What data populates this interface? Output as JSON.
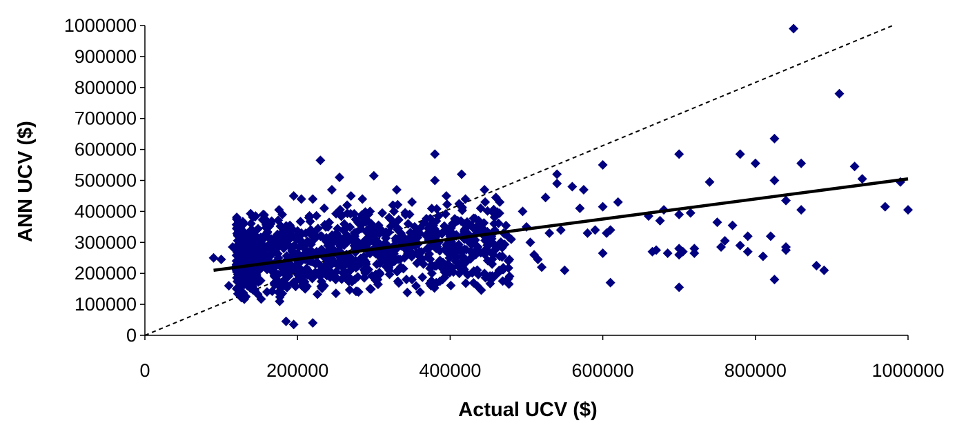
{
  "chart_data": {
    "type": "scatter",
    "title": "",
    "xlabel": "Actual UCV ($)",
    "ylabel": "ANN UCV ($)",
    "xlim": [
      0,
      1000000
    ],
    "ylim": [
      0,
      1000000
    ],
    "x_ticks": [
      "0",
      "200000",
      "400000",
      "600000",
      "800000",
      "1000000"
    ],
    "y_ticks": [
      "0",
      "100000",
      "200000",
      "300000",
      "400000",
      "500000",
      "600000",
      "700000",
      "800000",
      "900000",
      "1000000"
    ],
    "grid": false,
    "legend": "none",
    "colors": {
      "marker": "#000080",
      "trendline": "#000000",
      "reference_line": "#000000"
    },
    "reference_line": {
      "style": "dashed",
      "x": [
        0,
        980000
      ],
      "y": [
        0,
        1000000
      ]
    },
    "trendline": {
      "style": "solid",
      "x": [
        90000,
        1000000
      ],
      "y": [
        210000,
        505000
      ]
    },
    "series": [
      {
        "marker": "diamond",
        "points": [
          [
            90000,
            250000
          ],
          [
            100000,
            245000
          ],
          [
            110000,
            160000
          ],
          [
            115000,
            285000
          ],
          [
            120000,
            240000
          ],
          [
            125000,
            300000
          ],
          [
            130000,
            210000
          ],
          [
            135000,
            320000
          ],
          [
            140000,
            195000
          ],
          [
            140000,
            270000
          ],
          [
            145000,
            385000
          ],
          [
            145000,
            230000
          ],
          [
            150000,
            305000
          ],
          [
            150000,
            175000
          ],
          [
            155000,
            260000
          ],
          [
            155000,
            390000
          ],
          [
            160000,
            140000
          ],
          [
            160000,
            330000
          ],
          [
            165000,
            225000
          ],
          [
            165000,
            360000
          ],
          [
            170000,
            280000
          ],
          [
            170000,
            170000
          ],
          [
            175000,
            310000
          ],
          [
            175000,
            250000
          ],
          [
            180000,
            135000
          ],
          [
            180000,
            390000
          ],
          [
            185000,
            45000
          ],
          [
            185000,
            300000
          ],
          [
            190000,
            220000
          ],
          [
            190000,
            355000
          ],
          [
            195000,
            35000
          ],
          [
            195000,
            450000
          ],
          [
            200000,
            265000
          ],
          [
            200000,
            180000
          ],
          [
            205000,
            330000
          ],
          [
            205000,
            440000
          ],
          [
            210000,
            245000
          ],
          [
            210000,
            150000
          ],
          [
            215000,
            300000
          ],
          [
            215000,
            380000
          ],
          [
            220000,
            40000
          ],
          [
            220000,
            440000
          ],
          [
            225000,
            270000
          ],
          [
            225000,
            200000
          ],
          [
            230000,
            565000
          ],
          [
            230000,
            320000
          ],
          [
            235000,
            410000
          ],
          [
            235000,
            160000
          ],
          [
            240000,
            290000
          ],
          [
            240000,
            350000
          ],
          [
            245000,
            230000
          ],
          [
            245000,
            470000
          ],
          [
            250000,
            310000
          ],
          [
            250000,
            180000
          ],
          [
            255000,
            510000
          ],
          [
            255000,
            270000
          ],
          [
            260000,
            340000
          ],
          [
            260000,
            200000
          ],
          [
            265000,
            300000
          ],
          [
            265000,
            420000
          ],
          [
            270000,
            250000
          ],
          [
            270000,
            450000
          ],
          [
            275000,
            320000
          ],
          [
            275000,
            180000
          ],
          [
            280000,
            280000
          ],
          [
            280000,
            140000
          ],
          [
            285000,
            360000
          ],
          [
            285000,
            440000
          ],
          [
            290000,
            300000
          ],
          [
            290000,
            230000
          ],
          [
            295000,
            150000
          ],
          [
            295000,
            400000
          ],
          [
            300000,
            515000
          ],
          [
            300000,
            320000
          ],
          [
            305000,
            260000
          ],
          [
            305000,
            180000
          ],
          [
            310000,
            340000
          ],
          [
            315000,
            290000
          ],
          [
            320000,
            380000
          ],
          [
            320000,
            210000
          ],
          [
            325000,
            420000
          ],
          [
            330000,
            470000
          ],
          [
            330000,
            280000
          ],
          [
            335000,
            320000
          ],
          [
            340000,
            250000
          ],
          [
            345000,
            360000
          ],
          [
            350000,
            180000
          ],
          [
            350000,
            430000
          ],
          [
            355000,
            300000
          ],
          [
            360000,
            330000
          ],
          [
            365000,
            230000
          ],
          [
            370000,
            280000
          ],
          [
            375000,
            160000
          ],
          [
            380000,
            585000
          ],
          [
            380000,
            500000
          ],
          [
            385000,
            300000
          ],
          [
            390000,
            180000
          ],
          [
            395000,
            450000
          ],
          [
            400000,
            320000
          ],
          [
            405000,
            270000
          ],
          [
            410000,
            370000
          ],
          [
            415000,
            520000
          ],
          [
            420000,
            440000
          ],
          [
            425000,
            300000
          ],
          [
            430000,
            260000
          ],
          [
            435000,
            330000
          ],
          [
            440000,
            410000
          ],
          [
            445000,
            200000
          ],
          [
            445000,
            470000
          ],
          [
            450000,
            300000
          ],
          [
            455000,
            230000
          ],
          [
            460000,
            445000
          ],
          [
            460000,
            195000
          ],
          [
            465000,
            430000
          ],
          [
            470000,
            330000
          ],
          [
            480000,
            310000
          ],
          [
            495000,
            400000
          ],
          [
            500000,
            350000
          ],
          [
            505000,
            300000
          ],
          [
            510000,
            260000
          ],
          [
            515000,
            245000
          ],
          [
            520000,
            220000
          ],
          [
            525000,
            445000
          ],
          [
            530000,
            330000
          ],
          [
            540000,
            520000
          ],
          [
            540000,
            490000
          ],
          [
            545000,
            340000
          ],
          [
            550000,
            210000
          ],
          [
            560000,
            480000
          ],
          [
            570000,
            410000
          ],
          [
            575000,
            470000
          ],
          [
            580000,
            330000
          ],
          [
            590000,
            340000
          ],
          [
            600000,
            550000
          ],
          [
            600000,
            415000
          ],
          [
            600000,
            265000
          ],
          [
            605000,
            330000
          ],
          [
            610000,
            340000
          ],
          [
            610000,
            170000
          ],
          [
            620000,
            430000
          ],
          [
            660000,
            385000
          ],
          [
            665000,
            270000
          ],
          [
            670000,
            275000
          ],
          [
            675000,
            370000
          ],
          [
            680000,
            405000
          ],
          [
            685000,
            265000
          ],
          [
            700000,
            585000
          ],
          [
            700000,
            390000
          ],
          [
            700000,
            280000
          ],
          [
            700000,
            260000
          ],
          [
            700000,
            155000
          ],
          [
            705000,
            270000
          ],
          [
            715000,
            395000
          ],
          [
            720000,
            280000
          ],
          [
            720000,
            265000
          ],
          [
            740000,
            495000
          ],
          [
            750000,
            365000
          ],
          [
            755000,
            285000
          ],
          [
            760000,
            305000
          ],
          [
            770000,
            355000
          ],
          [
            780000,
            585000
          ],
          [
            780000,
            290000
          ],
          [
            790000,
            270000
          ],
          [
            790000,
            320000
          ],
          [
            800000,
            555000
          ],
          [
            810000,
            255000
          ],
          [
            820000,
            320000
          ],
          [
            825000,
            635000
          ],
          [
            825000,
            500000
          ],
          [
            825000,
            180000
          ],
          [
            840000,
            435000
          ],
          [
            840000,
            285000
          ],
          [
            840000,
            275000
          ],
          [
            850000,
            990000
          ],
          [
            860000,
            555000
          ],
          [
            860000,
            405000
          ],
          [
            880000,
            225000
          ],
          [
            890000,
            210000
          ],
          [
            910000,
            780000
          ],
          [
            930000,
            545000
          ],
          [
            940000,
            505000
          ],
          [
            970000,
            415000
          ],
          [
            990000,
            495000
          ],
          [
            1000000,
            405000
          ]
        ]
      }
    ]
  }
}
